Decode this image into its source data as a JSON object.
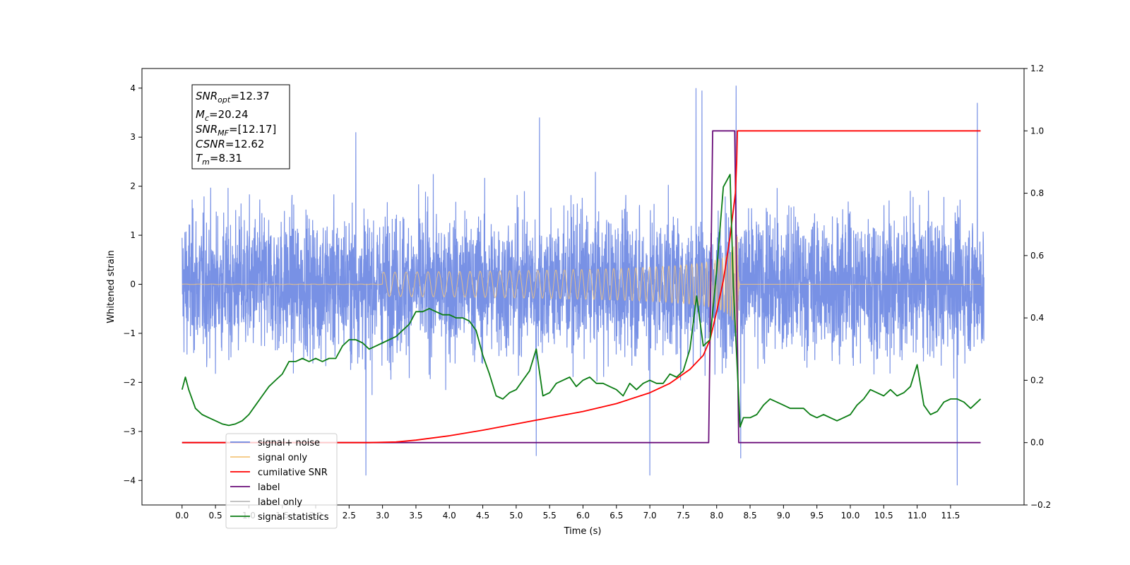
{
  "chart_data": {
    "type": "line",
    "xlabel": "Time (s)",
    "ylabel": "Whitened strain",
    "xlim": [
      -0.6,
      12.6
    ],
    "ylim": [
      -4.5,
      4.4
    ],
    "y2lim": [
      -0.2,
      1.2
    ],
    "x_ticks": [
      "0.0",
      "0.5",
      "1.0",
      "1.5",
      "2.0",
      "2.5",
      "3.0",
      "3.5",
      "4.0",
      "4.5",
      "5.0",
      "5.5",
      "6.0",
      "6.5",
      "7.0",
      "7.5",
      "8.0",
      "8.5",
      "9.0",
      "9.5",
      "10.0",
      "10.5",
      "11.0",
      "11.5"
    ],
    "y_ticks": [
      "4",
      "3",
      "2",
      "1",
      "0",
      "−1",
      "−2",
      "−3",
      "−4"
    ],
    "y2_ticks": [
      "1.2",
      "1.0",
      "0.8",
      "0.6",
      "0.4",
      "0.2",
      "0.0",
      "−0.2"
    ],
    "info_box": {
      "snr_opt": {
        "base": "SNR",
        "sub": "opt",
        "rest": "=12.37"
      },
      "mc": {
        "base": "M",
        "sub": "c",
        "rest": "=20.24"
      },
      "snr_mf": {
        "base": "SNR",
        "sub": "MF",
        "rest": "=[12.17]"
      },
      "csnr": {
        "base": "CSNR",
        "sub": "",
        "rest": "=12.62"
      },
      "tm": {
        "base": "T",
        "sub": "m",
        "rest": "=8.31"
      }
    },
    "legend": [
      {
        "label": "signal+ noise",
        "color": "#6c88e3"
      },
      {
        "label": "signal only",
        "color": "#f5c67b"
      },
      {
        "label": "cumilative SNR",
        "color": "#ff0000"
      },
      {
        "label": "label",
        "color": "#6a0e7a"
      },
      {
        "label": "label only",
        "color": "#bbbbbb"
      },
      {
        "label": "signal statistics",
        "color": "#0b7d14"
      }
    ],
    "legend_placement": "lower-left",
    "series": [
      {
        "name": "signal+ noise",
        "axis": "left",
        "color": "#6c88e3",
        "note": "broadband noise, approx. ±2.4 envelope with spikes to ~4",
        "amplitude": 0.72,
        "x_range": [
          0.0,
          12.0
        ],
        "spikes": [
          [
            7.69,
            4.0
          ],
          [
            7.78,
            3.95
          ],
          [
            8.29,
            4.05
          ],
          [
            2.6,
            3.1
          ],
          [
            5.35,
            3.4
          ],
          [
            11.9,
            3.7
          ],
          [
            7.0,
            -3.9
          ],
          [
            11.6,
            -4.1
          ],
          [
            2.75,
            -3.9
          ],
          [
            5.3,
            -3.5
          ],
          [
            8.36,
            -3.55
          ]
        ]
      },
      {
        "name": "signal only",
        "axis": "left",
        "color": "#f5c67b",
        "chirp": {
          "t_merge": 8.31,
          "amp_at_merge": 1.6
        }
      },
      {
        "name": "cumilative SNR",
        "axis": "right",
        "color": "#ff0000",
        "x": [
          0.0,
          2.8,
          3.2,
          3.5,
          4.0,
          4.5,
          5.0,
          5.5,
          6.0,
          6.5,
          7.0,
          7.3,
          7.6,
          7.8,
          7.9,
          8.0,
          8.1,
          8.2,
          8.28,
          8.3,
          8.31,
          11.95
        ],
        "y": [
          0.0,
          0.0,
          0.002,
          0.008,
          0.022,
          0.04,
          0.06,
          0.08,
          0.1,
          0.125,
          0.16,
          0.19,
          0.235,
          0.28,
          0.33,
          0.42,
          0.52,
          0.66,
          0.8,
          0.9,
          1.0,
          1.0
        ]
      },
      {
        "name": "label",
        "axis": "right",
        "color": "#6a0e7a",
        "x": [
          0.0,
          7.88,
          7.94,
          8.27,
          8.33,
          11.95
        ],
        "y": [
          0.0,
          0.0,
          1.0,
          1.0,
          0.0,
          0.0
        ]
      },
      {
        "name": "signal statistics",
        "axis": "right",
        "color": "#0b7d14",
        "x": [
          0.0,
          0.05,
          0.1,
          0.2,
          0.3,
          0.4,
          0.5,
          0.6,
          0.7,
          0.8,
          0.9,
          1.0,
          1.1,
          1.2,
          1.3,
          1.4,
          1.5,
          1.6,
          1.7,
          1.8,
          1.9,
          2.0,
          2.1,
          2.2,
          2.3,
          2.4,
          2.5,
          2.6,
          2.7,
          2.8,
          2.9,
          3.0,
          3.1,
          3.2,
          3.3,
          3.4,
          3.5,
          3.6,
          3.7,
          3.8,
          3.9,
          4.0,
          4.1,
          4.2,
          4.3,
          4.4,
          4.5,
          4.6,
          4.7,
          4.8,
          4.9,
          5.0,
          5.1,
          5.2,
          5.3,
          5.4,
          5.5,
          5.6,
          5.7,
          5.8,
          5.9,
          6.0,
          6.1,
          6.2,
          6.3,
          6.4,
          6.5,
          6.6,
          6.7,
          6.8,
          6.9,
          7.0,
          7.1,
          7.2,
          7.3,
          7.4,
          7.5,
          7.6,
          7.7,
          7.8,
          7.9,
          8.0,
          8.1,
          8.2,
          8.25,
          8.35,
          8.4,
          8.5,
          8.6,
          8.7,
          8.8,
          8.9,
          9.0,
          9.1,
          9.2,
          9.3,
          9.4,
          9.5,
          9.6,
          9.7,
          9.8,
          9.9,
          10.0,
          10.1,
          10.2,
          10.3,
          10.4,
          10.5,
          10.6,
          10.7,
          10.8,
          10.9,
          11.0,
          11.1,
          11.2,
          11.3,
          11.4,
          11.5,
          11.6,
          11.7,
          11.8,
          11.9,
          11.95
        ],
        "y": [
          0.17,
          0.21,
          0.17,
          0.11,
          0.09,
          0.08,
          0.07,
          0.06,
          0.055,
          0.06,
          0.07,
          0.09,
          0.12,
          0.15,
          0.18,
          0.2,
          0.22,
          0.26,
          0.26,
          0.27,
          0.26,
          0.27,
          0.26,
          0.27,
          0.27,
          0.31,
          0.33,
          0.33,
          0.32,
          0.3,
          0.31,
          0.32,
          0.33,
          0.34,
          0.36,
          0.38,
          0.42,
          0.42,
          0.43,
          0.42,
          0.41,
          0.41,
          0.4,
          0.4,
          0.39,
          0.36,
          0.28,
          0.22,
          0.15,
          0.14,
          0.16,
          0.17,
          0.2,
          0.23,
          0.3,
          0.15,
          0.16,
          0.19,
          0.2,
          0.21,
          0.18,
          0.2,
          0.21,
          0.19,
          0.19,
          0.18,
          0.17,
          0.15,
          0.19,
          0.17,
          0.19,
          0.2,
          0.19,
          0.19,
          0.22,
          0.21,
          0.23,
          0.3,
          0.47,
          0.31,
          0.33,
          0.55,
          0.82,
          0.86,
          0.5,
          0.05,
          0.08,
          0.08,
          0.09,
          0.12,
          0.14,
          0.13,
          0.12,
          0.11,
          0.11,
          0.11,
          0.09,
          0.08,
          0.09,
          0.08,
          0.07,
          0.08,
          0.09,
          0.12,
          0.14,
          0.17,
          0.16,
          0.15,
          0.17,
          0.15,
          0.16,
          0.18,
          0.25,
          0.12,
          0.09,
          0.1,
          0.13,
          0.14,
          0.14,
          0.13,
          0.11,
          0.13,
          0.14
        ]
      }
    ]
  }
}
